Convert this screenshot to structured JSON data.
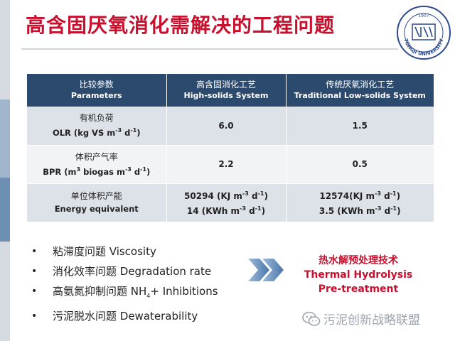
{
  "title": "高含固厌氧消化需解决的工程问题",
  "logo": {
    "icon": "tongji-university-seal",
    "year": "1907",
    "text": "TONGJI UNIVERSITY"
  },
  "table": {
    "headers": [
      {
        "zh": "比较参数",
        "en": "Parameters"
      },
      {
        "zh": "高含固消化工艺",
        "en": "High-solids System"
      },
      {
        "zh": "传统厌氧消化工艺",
        "en": "Traditional Low-solids System"
      }
    ],
    "rows": [
      {
        "zh": "有机负荷",
        "en": "OLR (kg VS m",
        "en_sup1": "-3",
        "en_mid": " d",
        "en_sup2": "-1",
        "en_end": ")",
        "high": "6.0",
        "trad": "1.5"
      },
      {
        "zh": "体积产气率",
        "en": "BPR (m",
        "en_sup0": "3",
        "en_a": " biogas m",
        "en_sup1": "-3",
        "en_mid": " d",
        "en_sup2": "-1",
        "en_end": ")",
        "high": "2.2",
        "trad": "0.5"
      },
      {
        "zh": "单位体积产能",
        "en": "Energy equivalent",
        "high1": "50294 (KJ m",
        "high1_s1": "-3",
        "high1_m": " d",
        "high1_s2": "-1",
        "high1_e": ")",
        "high2": "14 (KWh m",
        "high2_s1": "-3",
        "high2_m": " d",
        "high2_s2": "-1",
        "high2_e": ")",
        "trad1": "12574(KJ m",
        "trad1_s1": "-3",
        "trad1_m": " d",
        "trad1_s2": "-1",
        "trad1_e": ")",
        "trad2": "3.5 (KWh m",
        "trad2_s1": "-3",
        "trad2_m": " d",
        "trad2_s2": "-1",
        "trad2_e": ")"
      }
    ]
  },
  "bullets": [
    {
      "text": "粘滞度问题  Viscosity"
    },
    {
      "text": "消化效率问题 Degradation rate"
    },
    {
      "text": "高氨氮抑制问题 NH",
      "sub": "4",
      "text_end": "+ Inhibitions"
    },
    {
      "text": "污泥脱水问题  Dewaterability"
    }
  ],
  "bullet_char": "•",
  "arrows_icon": "double-chevron-right-icon",
  "thermal": {
    "zh": "热水解预处理技术",
    "en1": "Thermal Hydrolysis",
    "en2": "Pre-treatment"
  },
  "watermark": {
    "icon": "wechat-icon",
    "text": "污泥创新战略联盟"
  },
  "colors": {
    "title": "#c8102e",
    "header_bg": "#2c4a6e",
    "row_a": "#dde2e8",
    "row_b": "#f1f3f5",
    "arrows": "#5b86b8"
  }
}
